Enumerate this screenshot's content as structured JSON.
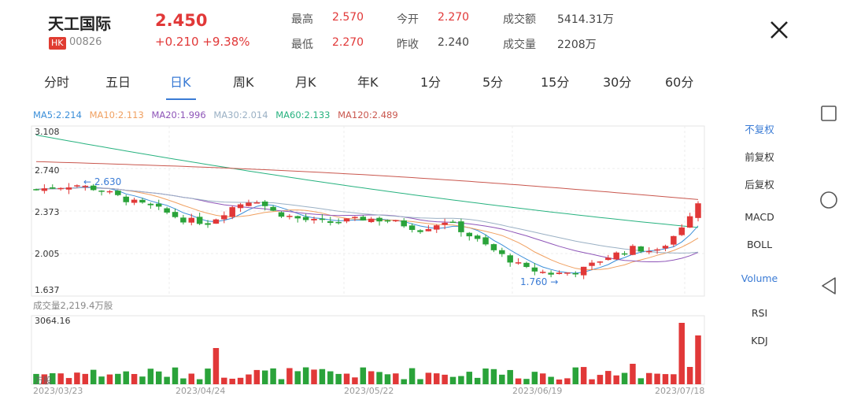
{
  "header": {
    "name": "天工国际",
    "market_badge": "HK",
    "code": "00826",
    "price": "2.450",
    "change": "+0.210 +9.38%",
    "stats": [
      {
        "label": "最高",
        "value": "2.570",
        "color": "#e13838"
      },
      {
        "label": "今开",
        "value": "2.270",
        "color": "#e13838"
      },
      {
        "label": "成交额",
        "value": "5414.31万",
        "color": "#333333"
      },
      {
        "label": "最低",
        "value": "2.270",
        "color": "#e13838"
      },
      {
        "label": "昨收",
        "value": "2.240",
        "color": "#333333"
      },
      {
        "label": "成交量",
        "value": "2208万",
        "color": "#333333"
      }
    ]
  },
  "tabs": [
    "分时",
    "五日",
    "日K",
    "周K",
    "月K",
    "年K",
    "1分",
    "5分",
    "15分",
    "30分",
    "60分"
  ],
  "active_tab": "日K",
  "ma_legend": [
    {
      "text": "MA5:2.214",
      "color": "#3b8fd9"
    },
    {
      "text": "MA10:2.113",
      "color": "#f0a060"
    },
    {
      "text": "MA20:1.996",
      "color": "#8e55b8"
    },
    {
      "text": "MA30:2.014",
      "color": "#9ab0c4"
    },
    {
      "text": "MA60:2.133",
      "color": "#27b27f"
    },
    {
      "text": "MA120:2.489",
      "color": "#c9574e"
    }
  ],
  "side_menu": {
    "adjust": [
      "不复权",
      "前复权",
      "后复权"
    ],
    "active_adjust": "不复权",
    "indicators_top": [
      "MACD",
      "BOLL"
    ],
    "indicators_bottom": [
      "Volume",
      "RSI",
      "KDJ"
    ],
    "active_indicator": "Volume"
  },
  "chart_data": {
    "type": "candlestick",
    "y_ticks": [
      "3.108",
      "2.740",
      "2.373",
      "2.005",
      "1.637"
    ],
    "ylim": [
      1.637,
      3.108
    ],
    "annotations": [
      {
        "text": "2.630",
        "arrow": "←"
      },
      {
        "text": "1.760",
        "arrow": "→"
      }
    ],
    "volume_label": "成交量2,219.4万股",
    "volume_max": "3064.16",
    "volume_unit": "万股",
    "x_dates": [
      "2023/03/23",
      "2023/04/24",
      "2023/05/22",
      "2023/06/19",
      "2023/07/18"
    ],
    "colors": {
      "up": "#e13838",
      "down": "#2aa33a"
    }
  },
  "nav": {
    "square": "square-button",
    "circle": "home-button",
    "back": "back-button"
  }
}
